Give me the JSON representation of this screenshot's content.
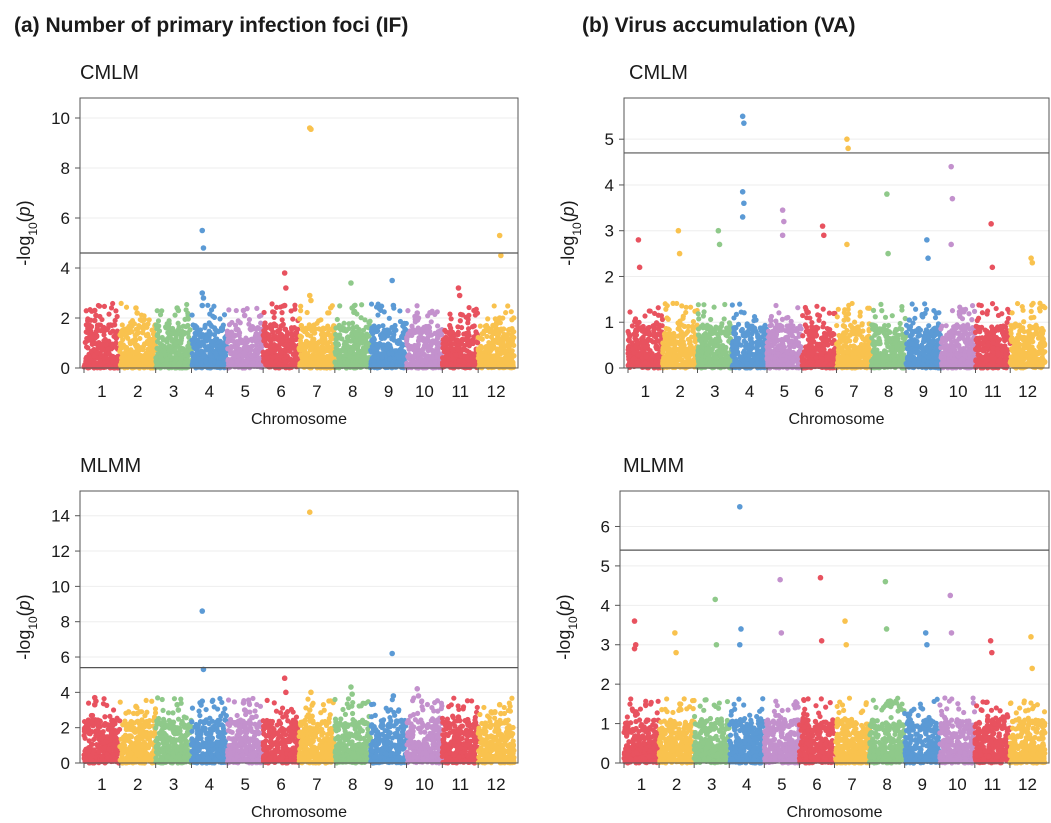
{
  "panels": [
    {
      "label": "(a)",
      "title": "Number of primary infection foci (IF)"
    },
    {
      "label": "(b)",
      "title": "Virus accumulation (VA)"
    }
  ],
  "methods": [
    "CMLM",
    "MLMM"
  ],
  "colors": {
    "chromosomes": [
      "#e8525f",
      "#f9c24e",
      "#8fc98a",
      "#5b9ad5",
      "#c391cd",
      "#e8525f",
      "#f9c24e",
      "#8fc98a",
      "#5b9ad5",
      "#c391cd",
      "#e8525f",
      "#f9c24e"
    ],
    "threshold_line": "#555555",
    "frame": "#555555"
  },
  "chart_data": [
    {
      "type": "scatter",
      "subtype": "manhattan",
      "panel": "(a)",
      "method": "CMLM",
      "xlabel": "Chromosome",
      "ylabel": "-log10(p)",
      "categories": [
        "1",
        "2",
        "3",
        "4",
        "5",
        "6",
        "7",
        "8",
        "9",
        "10",
        "11",
        "12"
      ],
      "ylim": [
        0,
        10.8
      ],
      "yticks": [
        0,
        2,
        4,
        6,
        8,
        10
      ],
      "threshold": 4.6,
      "peaks": [
        {
          "chromosome": "1",
          "values": [
            2.3,
            2.1,
            1.9
          ]
        },
        {
          "chromosome": "2",
          "values": [
            2.4,
            2.2
          ]
        },
        {
          "chromosome": "3",
          "values": [
            2.4,
            2.3
          ]
        },
        {
          "chromosome": "4",
          "values": [
            5.5,
            4.8,
            3.0,
            2.8,
            2.5
          ]
        },
        {
          "chromosome": "5",
          "values": [
            2.3,
            2.1
          ]
        },
        {
          "chromosome": "6",
          "values": [
            3.8,
            3.2,
            2.5
          ]
        },
        {
          "chromosome": "7",
          "values": [
            9.6,
            9.55,
            2.9,
            2.7
          ]
        },
        {
          "chromosome": "8",
          "values": [
            3.4,
            2.4
          ]
        },
        {
          "chromosome": "9",
          "values": [
            3.5,
            2.5
          ]
        },
        {
          "chromosome": "10",
          "values": [
            2.2,
            2.0
          ]
        },
        {
          "chromosome": "11",
          "values": [
            3.2,
            2.9
          ]
        },
        {
          "chromosome": "12",
          "values": [
            5.3,
            4.5,
            2.0
          ]
        }
      ]
    },
    {
      "type": "scatter",
      "subtype": "manhattan",
      "panel": "(b)",
      "method": "CMLM",
      "xlabel": "Chromosome",
      "ylabel": "-log10(p)",
      "categories": [
        "1",
        "2",
        "3",
        "4",
        "5",
        "6",
        "7",
        "8",
        "9",
        "10",
        "11",
        "12"
      ],
      "ylim": [
        0,
        5.9
      ],
      "yticks": [
        0,
        1,
        2,
        3,
        4,
        5
      ],
      "threshold": 4.7,
      "peaks": [
        {
          "chromosome": "1",
          "values": [
            2.8,
            2.2
          ]
        },
        {
          "chromosome": "2",
          "values": [
            3.0,
            2.5
          ]
        },
        {
          "chromosome": "3",
          "values": [
            3.0,
            2.7
          ]
        },
        {
          "chromosome": "4",
          "values": [
            5.5,
            5.35,
            3.85,
            3.6,
            3.3
          ]
        },
        {
          "chromosome": "5",
          "values": [
            3.45,
            3.2,
            2.9
          ]
        },
        {
          "chromosome": "6",
          "values": [
            3.1,
            2.9
          ]
        },
        {
          "chromosome": "7",
          "values": [
            5.0,
            4.8,
            2.7
          ]
        },
        {
          "chromosome": "8",
          "values": [
            3.8,
            2.5
          ]
        },
        {
          "chromosome": "9",
          "values": [
            2.8,
            2.4
          ]
        },
        {
          "chromosome": "10",
          "values": [
            4.4,
            3.7,
            2.7
          ]
        },
        {
          "chromosome": "11",
          "values": [
            3.15,
            2.2
          ]
        },
        {
          "chromosome": "12",
          "values": [
            2.4,
            2.3
          ]
        }
      ]
    },
    {
      "type": "scatter",
      "subtype": "manhattan",
      "panel": "(a)",
      "method": "MLMM",
      "xlabel": "Chromosome",
      "ylabel": "-log10(p)",
      "categories": [
        "1",
        "2",
        "3",
        "4",
        "5",
        "6",
        "7",
        "8",
        "9",
        "10",
        "11",
        "12"
      ],
      "ylim": [
        0,
        15.4
      ],
      "yticks": [
        0,
        2,
        4,
        6,
        8,
        10,
        12,
        14
      ],
      "threshold": 5.4,
      "peaks": [
        {
          "chromosome": "1",
          "values": [
            3.7,
            3.5,
            3.3
          ]
        },
        {
          "chromosome": "2",
          "values": [
            3.2,
            2.8
          ]
        },
        {
          "chromosome": "3",
          "values": [
            3.3,
            3.0
          ]
        },
        {
          "chromosome": "4",
          "values": [
            8.6,
            5.3,
            3.5
          ]
        },
        {
          "chromosome": "5",
          "values": [
            3.4,
            3.0
          ]
        },
        {
          "chromosome": "6",
          "values": [
            4.8,
            4.0
          ]
        },
        {
          "chromosome": "7",
          "values": [
            14.2,
            4.0,
            3.0
          ]
        },
        {
          "chromosome": "8",
          "values": [
            4.3,
            3.9
          ]
        },
        {
          "chromosome": "9",
          "values": [
            6.2,
            3.8
          ]
        },
        {
          "chromosome": "10",
          "values": [
            4.2,
            3.8
          ]
        },
        {
          "chromosome": "11",
          "values": [
            2.6,
            2.4
          ]
        },
        {
          "chromosome": "12",
          "values": [
            3.3,
            2.8
          ]
        }
      ]
    },
    {
      "type": "scatter",
      "subtype": "manhattan",
      "panel": "(b)",
      "method": "MLMM",
      "xlabel": "Chromosome",
      "ylabel": "-log10(p)",
      "categories": [
        "1",
        "2",
        "3",
        "4",
        "5",
        "6",
        "7",
        "8",
        "9",
        "10",
        "11",
        "12"
      ],
      "ylim": [
        0,
        6.9
      ],
      "yticks": [
        0,
        1,
        2,
        3,
        4,
        5,
        6
      ],
      "threshold": 5.4,
      "peaks": [
        {
          "chromosome": "1",
          "values": [
            3.6,
            3.0,
            2.9
          ]
        },
        {
          "chromosome": "2",
          "values": [
            3.3,
            2.8
          ]
        },
        {
          "chromosome": "3",
          "values": [
            4.15,
            3.0
          ]
        },
        {
          "chromosome": "4",
          "values": [
            6.5,
            3.4,
            3.0
          ]
        },
        {
          "chromosome": "5",
          "values": [
            4.65,
            3.3
          ]
        },
        {
          "chromosome": "6",
          "values": [
            4.7,
            3.1
          ]
        },
        {
          "chromosome": "7",
          "values": [
            3.6,
            3.0
          ]
        },
        {
          "chromosome": "8",
          "values": [
            4.6,
            3.4
          ]
        },
        {
          "chromosome": "9",
          "values": [
            3.3,
            3.0
          ]
        },
        {
          "chromosome": "10",
          "values": [
            4.25,
            3.3
          ]
        },
        {
          "chromosome": "11",
          "values": [
            3.1,
            2.8
          ]
        },
        {
          "chromosome": "12",
          "values": [
            3.2,
            2.4
          ]
        }
      ]
    }
  ]
}
